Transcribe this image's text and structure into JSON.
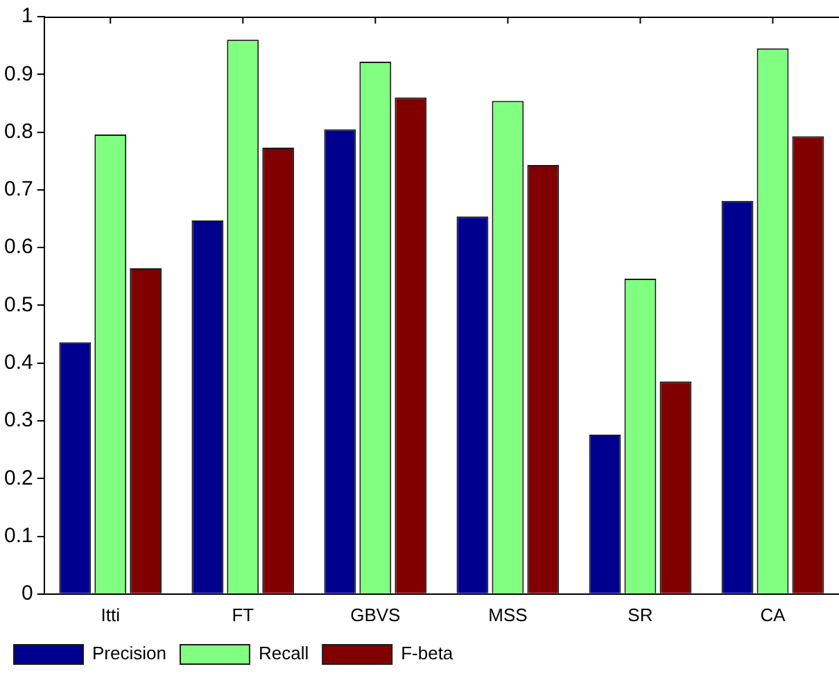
{
  "chart_data": {
    "type": "bar",
    "categories": [
      "Itti",
      "FT",
      "GBVS",
      "MSS",
      "SR",
      "CA"
    ],
    "series": [
      {
        "name": "Precision",
        "color": "#00008f",
        "values": [
          0.436,
          0.647,
          0.805,
          0.654,
          0.276,
          0.681
        ]
      },
      {
        "name": "Recall",
        "color": "#80ff80",
        "values": [
          0.796,
          0.96,
          0.922,
          0.854,
          0.546,
          0.945
        ]
      },
      {
        "name": "F-beta",
        "color": "#800000",
        "values": [
          0.564,
          0.773,
          0.86,
          0.743,
          0.368,
          0.793
        ]
      }
    ],
    "ylim": [
      0,
      1
    ],
    "yticks": [
      0,
      0.1,
      0.2,
      0.3,
      0.4,
      0.5,
      0.6,
      0.7,
      0.8,
      0.9,
      1
    ],
    "grid": false,
    "legend": "bottom left"
  }
}
